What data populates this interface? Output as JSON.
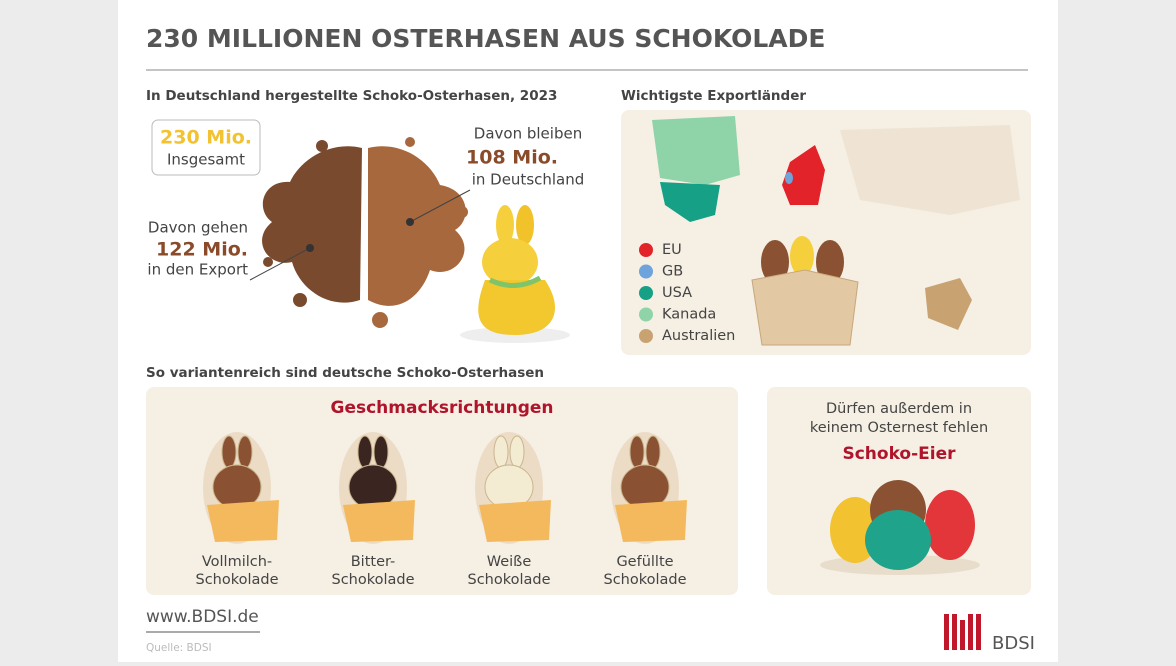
{
  "title": "230 MILLIONEN OSTERHASEN AUS SCHOKOLADE",
  "production": {
    "heading": "In Deutschland hergestellte Schoko-Osterhasen, 2023",
    "total": {
      "value": "230 Mio.",
      "label": "Insgesamt"
    },
    "stay": {
      "pre": "Davon bleiben",
      "value": "108 Mio.",
      "post": "in Deutschland"
    },
    "export": {
      "pre": "Davon gehen",
      "value": "122 Mio.",
      "post": "in den Export"
    }
  },
  "export_countries": {
    "heading": "Wichtigste Exportländer",
    "legend": [
      {
        "label": "EU",
        "color": "#e2232a"
      },
      {
        "label": "GB",
        "color": "#6fa3dc"
      },
      {
        "label": "USA",
        "color": "#16a085"
      },
      {
        "label": "Kanada",
        "color": "#8fd3a9"
      },
      {
        "label": "Australien",
        "color": "#c9a272"
      }
    ]
  },
  "varieties": {
    "heading": "So variantenreich sind deutsche Schoko-Osterhasen",
    "panel_title": "Geschmacksrichtungen",
    "items": [
      {
        "lines": [
          "Vollmilch-",
          "Schokolade"
        ],
        "color": "#8a5232"
      },
      {
        "lines": [
          "Bitter-",
          "Schokolade"
        ],
        "color": "#3b2521"
      },
      {
        "lines": [
          "Weiße",
          "Schokolade"
        ],
        "color": "#f4ecd2"
      },
      {
        "lines": [
          "Gefüllte",
          "Schokolade"
        ],
        "color": "#8a5232"
      }
    ]
  },
  "eggs": {
    "lines": [
      "Dürfen außerdem in",
      "keinem Osternest fehlen"
    ],
    "highlight": "Schoko-Eier"
  },
  "footer": {
    "url": "www.BDSI.de",
    "source": "Quelle: BDSI",
    "logo": "BDSI"
  }
}
